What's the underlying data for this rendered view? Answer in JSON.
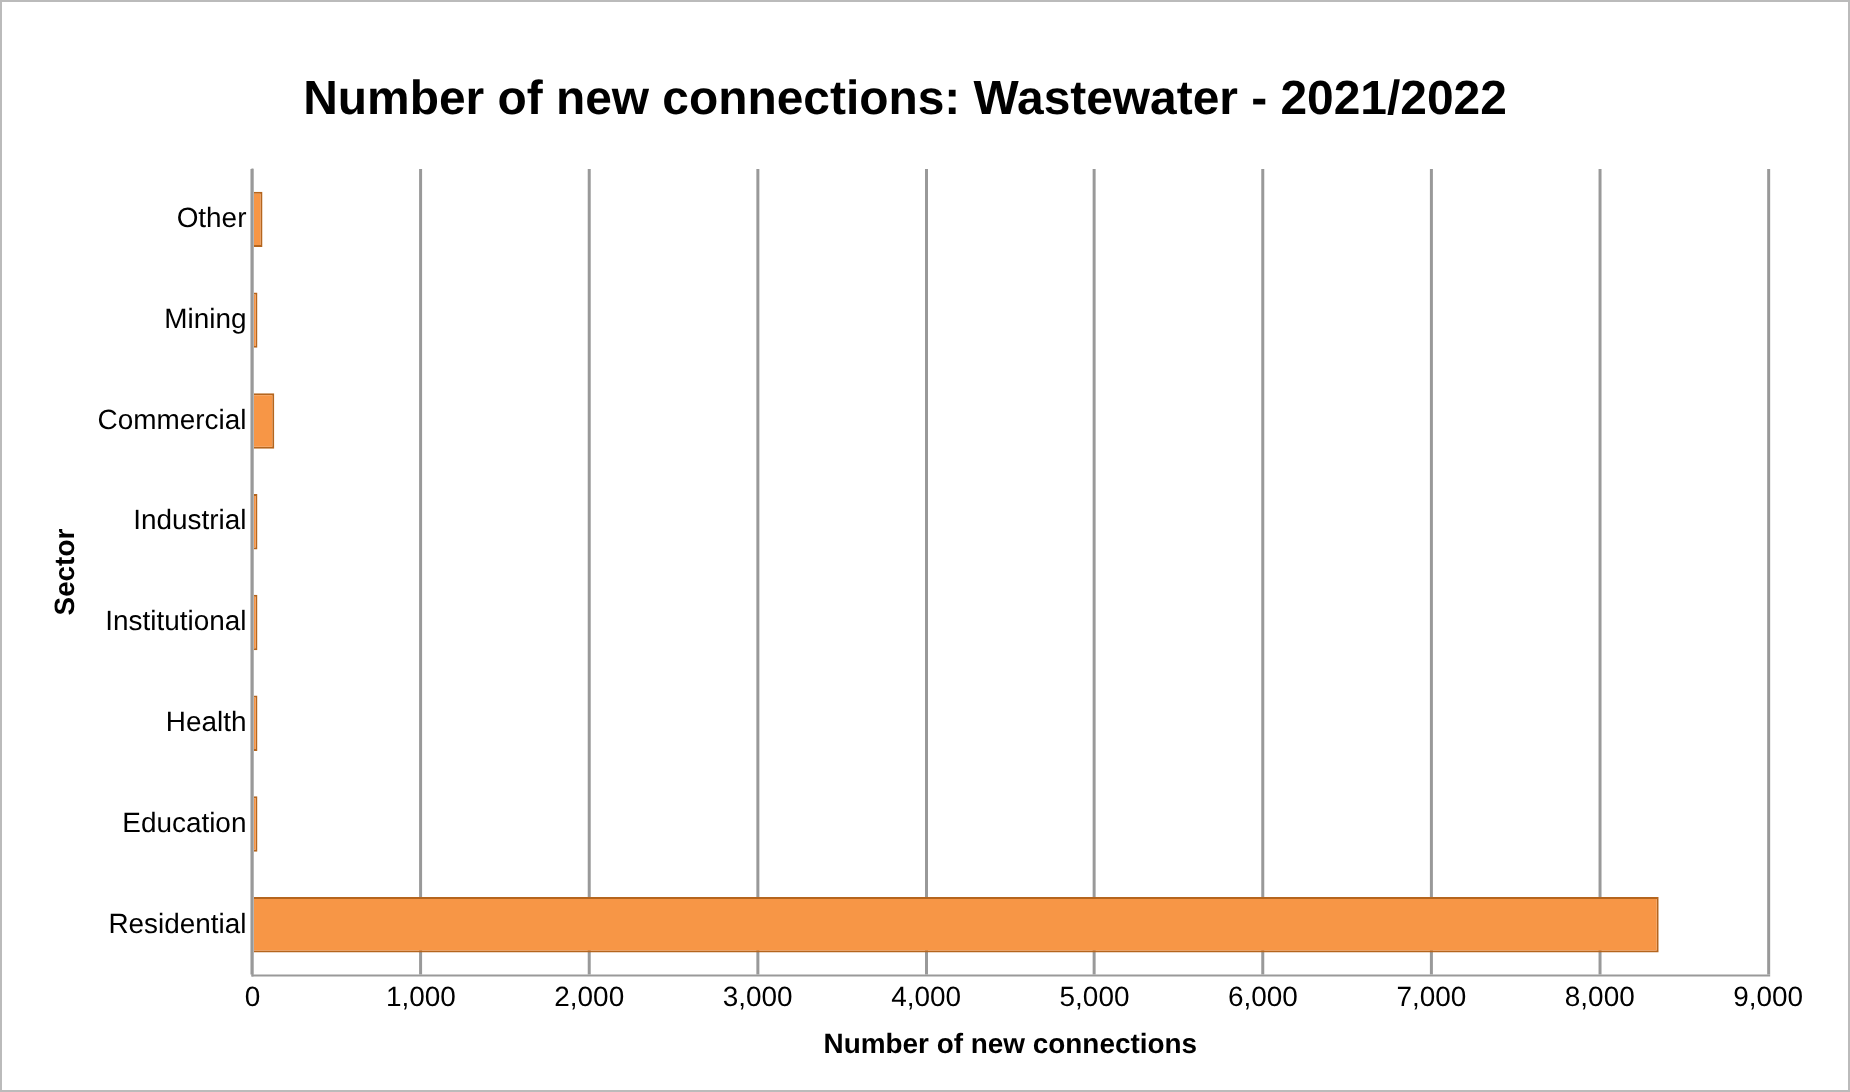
{
  "chart_data": {
    "type": "bar",
    "orientation": "horizontal",
    "title": "Number of new connections: Wastewater - 2021/2022",
    "xlabel": "Number of new connections",
    "ylabel": "Sector",
    "categories": [
      "Other",
      "Mining",
      "Commercial",
      "Industrial",
      "Institutional",
      "Health",
      "Education",
      "Residential"
    ],
    "values": [
      60,
      30,
      130,
      30,
      30,
      30,
      30,
      8350
    ],
    "color": "#f79646",
    "xlim": [
      0,
      9000
    ],
    "xticks": [
      {
        "value": 0,
        "label": "0"
      },
      {
        "value": 1000,
        "label": "1,000"
      },
      {
        "value": 2000,
        "label": "2,000"
      },
      {
        "value": 3000,
        "label": "3,000"
      },
      {
        "value": 4000,
        "label": "4,000"
      },
      {
        "value": 5000,
        "label": "5,000"
      },
      {
        "value": 6000,
        "label": "6,000"
      },
      {
        "value": 7000,
        "label": "7,000"
      },
      {
        "value": 8000,
        "label": "8,000"
      },
      {
        "value": 9000,
        "label": "9,000"
      }
    ],
    "grid": "x",
    "legend": false
  }
}
